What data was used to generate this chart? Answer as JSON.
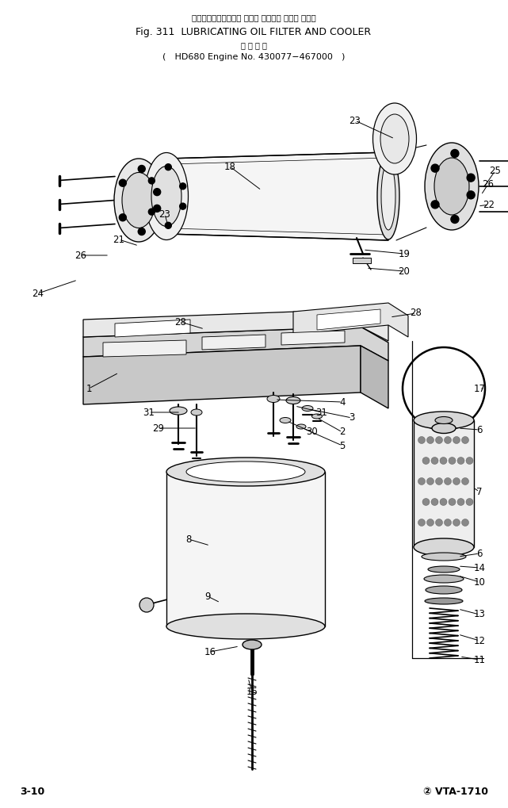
{
  "title_japanese": "ルーブリケーティング オイル フィルタ および クーラ",
  "title_line1": "Fig. 311  LUBRICATING OIL FILTER AND COOLER",
  "title_line2_japanese": "適 用 号 機",
  "title_line2": "HD680 Engine No. 430077−467000",
  "footer_left": "3-10",
  "footer_right": "② VTA-1710",
  "bg_color": "#ffffff",
  "fig_width": 6.41,
  "fig_height": 10.19,
  "dpi": 100
}
